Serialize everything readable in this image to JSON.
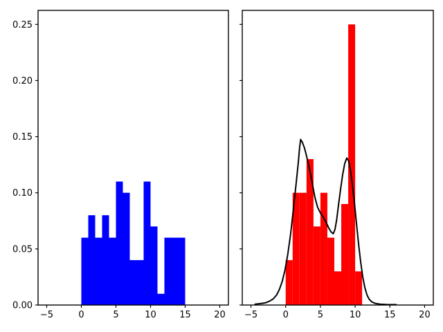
{
  "figure": {
    "background": "#ffffff",
    "spine_color": "#000000",
    "tick_color": "#000000"
  },
  "chart_data": [
    {
      "type": "bar",
      "subtype": "histogram-density",
      "panel": "left",
      "title": "",
      "xlabel": "",
      "ylabel": "",
      "grid": false,
      "legend": null,
      "bar_color": "#0000ff",
      "bin_edges": [
        0,
        1,
        2,
        3,
        4,
        5,
        6,
        7,
        8,
        9,
        10,
        11,
        12,
        13,
        14,
        15
      ],
      "densities": [
        0.06,
        0.08,
        0.06,
        0.08,
        0.06,
        0.11,
        0.1,
        0.04,
        0.04,
        0.11,
        0.07,
        0.01,
        0.06,
        0.06,
        0.06
      ],
      "xlim": [
        -6.25,
        21.25
      ],
      "ylim": [
        0,
        0.2625
      ],
      "x_ticks": [
        -5,
        0,
        5,
        10,
        15,
        20
      ],
      "x_tick_labels": [
        "−5",
        "0",
        "5",
        "10",
        "15",
        "20"
      ],
      "y_ticks": [
        0,
        0.05,
        0.1,
        0.15,
        0.2,
        0.25
      ],
      "y_tick_labels": [
        "0.00",
        "0.05",
        "0.10",
        "0.15",
        "0.20",
        "0.25"
      ]
    },
    {
      "type": "bar",
      "subtype": "histogram-density-with-kde",
      "panel": "right",
      "title": "",
      "xlabel": "",
      "ylabel": "",
      "grid": false,
      "legend": null,
      "bar_color": "#ff0000",
      "kde_color": "#000000",
      "bin_edges": [
        0,
        1,
        2,
        3,
        4,
        5,
        6,
        7,
        8,
        9,
        10,
        11
      ],
      "densities": [
        0.04,
        0.1,
        0.1,
        0.13,
        0.07,
        0.1,
        0.06,
        0.03,
        0.09,
        0.25,
        0.03
      ],
      "kde_points": [
        [
          -4.4,
          0.0008
        ],
        [
          -3.6,
          0.0013
        ],
        [
          -2.9,
          0.002
        ],
        [
          -2.3,
          0.0035
        ],
        [
          -1.8,
          0.0055
        ],
        [
          -1.3,
          0.009
        ],
        [
          -0.9,
          0.014
        ],
        [
          -0.5,
          0.021
        ],
        [
          -0.1,
          0.031
        ],
        [
          0.3,
          0.045
        ],
        [
          0.7,
          0.063
        ],
        [
          1.1,
          0.085
        ],
        [
          1.5,
          0.108
        ],
        [
          1.8,
          0.126
        ],
        [
          2.0,
          0.14
        ],
        [
          2.15,
          0.1475
        ],
        [
          2.4,
          0.145
        ],
        [
          2.7,
          0.14
        ],
        [
          3.0,
          0.133
        ],
        [
          3.3,
          0.125
        ],
        [
          3.6,
          0.116
        ],
        [
          3.9,
          0.106
        ],
        [
          4.2,
          0.096
        ],
        [
          4.6,
          0.087
        ],
        [
          5.0,
          0.082
        ],
        [
          5.4,
          0.0785
        ],
        [
          5.8,
          0.074
        ],
        [
          6.2,
          0.0685
        ],
        [
          6.55,
          0.065
        ],
        [
          6.85,
          0.0635
        ],
        [
          7.1,
          0.0675
        ],
        [
          7.35,
          0.0765
        ],
        [
          7.6,
          0.089
        ],
        [
          7.9,
          0.103
        ],
        [
          8.2,
          0.116
        ],
        [
          8.5,
          0.126
        ],
        [
          8.8,
          0.131
        ],
        [
          9.05,
          0.1285
        ],
        [
          9.3,
          0.121
        ],
        [
          9.6,
          0.107
        ],
        [
          9.9,
          0.091
        ],
        [
          10.2,
          0.072
        ],
        [
          10.5,
          0.054
        ],
        [
          10.8,
          0.038
        ],
        [
          11.1,
          0.025
        ],
        [
          11.4,
          0.0155
        ],
        [
          11.7,
          0.009
        ],
        [
          12.0,
          0.0053
        ],
        [
          12.4,
          0.0028
        ],
        [
          12.9,
          0.0014
        ],
        [
          13.6,
          0.0008
        ],
        [
          14.5,
          0.0005
        ],
        [
          15.9,
          0.0004
        ]
      ],
      "xlim": [
        -6.25,
        21.25
      ],
      "ylim": [
        0,
        0.2625
      ],
      "x_ticks": [
        -5,
        0,
        5,
        10,
        15,
        20
      ],
      "x_tick_labels": [
        "−5",
        "0",
        "5",
        "10",
        "15",
        "20"
      ],
      "y_ticks": [
        0,
        0.05,
        0.1,
        0.15,
        0.2,
        0.25
      ],
      "y_tick_labels": []
    }
  ]
}
